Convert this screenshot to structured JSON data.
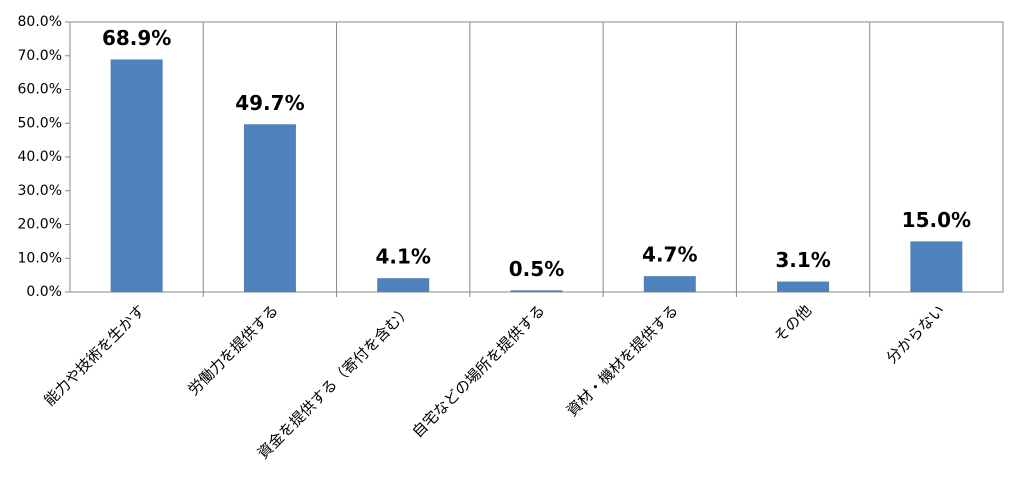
{
  "chart_data": {
    "type": "bar",
    "categories": [
      "能力や技術を生かす",
      "労働力を提供する",
      "資金を提供する（寄付を含む）",
      "自宅などの場所を提供する",
      "資材・機材を提供する",
      "その他",
      "分からない"
    ],
    "values": [
      68.9,
      49.7,
      4.1,
      0.5,
      4.7,
      3.1,
      15.0
    ],
    "value_labels": [
      "68.9%",
      "49.7%",
      "4.1%",
      "0.5%",
      "4.7%",
      "3.1%",
      "15.0%"
    ],
    "color": "#4f81bd",
    "ylim": [
      0,
      80
    ],
    "yticks": [
      {
        "value": 0,
        "label": "0.0%"
      },
      {
        "value": 10,
        "label": "10.0%"
      },
      {
        "value": 20,
        "label": "20.0%"
      },
      {
        "value": 30,
        "label": "30.0%"
      },
      {
        "value": 40,
        "label": "40.0%"
      },
      {
        "value": 50,
        "label": "50.0%"
      },
      {
        "value": 60,
        "label": "60.0%"
      },
      {
        "value": 70,
        "label": "70.0%"
      },
      {
        "value": 80,
        "label": "80.0%"
      }
    ]
  }
}
